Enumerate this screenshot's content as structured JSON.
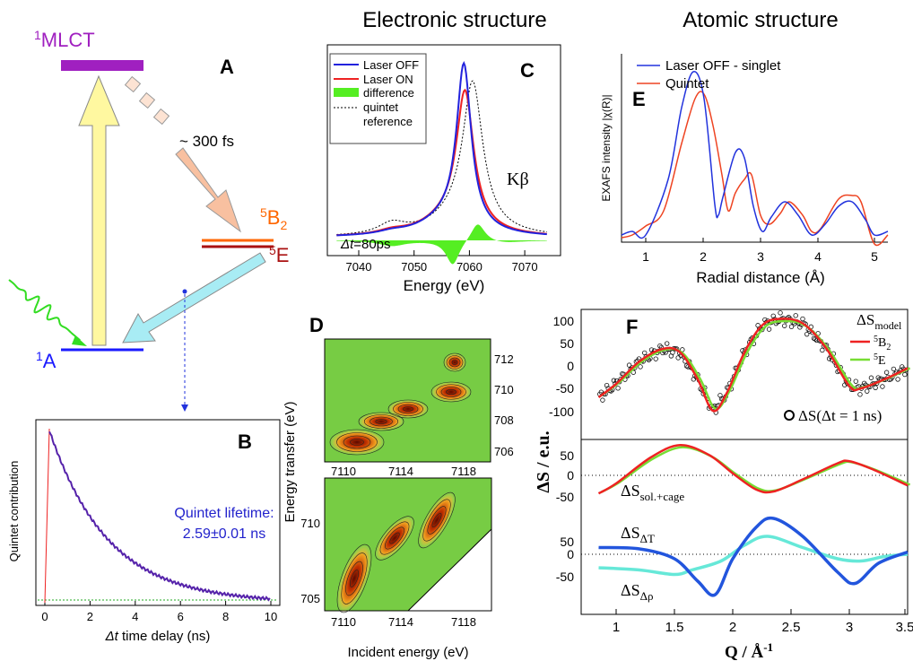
{
  "headers": {
    "electronic": "Electronic structure",
    "atomic": "Atomic structure"
  },
  "panel_a": {
    "label": "A",
    "mlct": {
      "sup": "1",
      "name": "MLCT"
    },
    "b2": {
      "sup": "5",
      "name": "B",
      "sub": "2"
    },
    "e": {
      "sup": "5",
      "name": "E"
    },
    "a": {
      "sup": "1",
      "name": "A"
    },
    "time": "~ 300 fs"
  },
  "panel_b": {
    "label": "B",
    "ylabel": "Quintet contribution",
    "xlabel_italic": "Δt",
    "xlabel": " time delay (ns)",
    "xticks": [
      "0",
      "2",
      "4",
      "6",
      "8",
      "10"
    ],
    "annotation": [
      "Quintet lifetime:",
      "2.59±0.01 ns"
    ]
  },
  "panel_c": {
    "label": "C",
    "legend": [
      "Laser OFF",
      "Laser ON",
      "difference",
      "quintet",
      "reference"
    ],
    "kbeta": "Kβ",
    "delay_italic": "Δt",
    "delay": "=80ps",
    "xticks": [
      "7040",
      "7050",
      "7060",
      "7070"
    ],
    "xlabel": "Energy (eV)"
  },
  "panel_d": {
    "label": "D",
    "top_yticks": [
      "712",
      "710",
      "708",
      "706"
    ],
    "top_xticks": [
      "7110",
      "7114",
      "7118"
    ],
    "ylabel": "Energy transfer (eV)",
    "bottom_yticks": [
      "710",
      "705"
    ],
    "bottom_xticks": [
      "7110",
      "7114",
      "7118"
    ],
    "xlabel": "Incident energy (eV)"
  },
  "panel_e": {
    "label": "E",
    "legend": [
      "Laser OFF - singlet",
      "Quintet"
    ],
    "ylabel": "EXAFS intensity |χ(R)|",
    "xticks": [
      "1",
      "2",
      "3",
      "4",
      "5"
    ],
    "xlabel": "Radial distance (Å)"
  },
  "panel_f": {
    "label": "F",
    "top_yticks": [
      "100",
      "50",
      "0",
      "-50",
      "-100"
    ],
    "middle_yticks": [
      "50",
      "0",
      "-50"
    ],
    "bottom_yticks": [
      "50",
      "0",
      "-50"
    ],
    "model": {
      "name": "ΔS",
      "sub": "model"
    },
    "b2": {
      "sup": "5",
      "name": "B",
      "sub": "2"
    },
    "e": {
      "sup": "5",
      "name": "E"
    },
    "data_label": "ΔS(Δt = 1 ns)",
    "sol_cage": {
      "name": "ΔS",
      "sub": "sol.+cage"
    },
    "dT": {
      "name": "ΔS",
      "sub": "ΔT"
    },
    "drho": {
      "name": "ΔS",
      "sub": "Δρ"
    },
    "ylabel": "ΔS / e.u.",
    "xlabel": {
      "name": "Q / Å",
      "sup": "-1"
    },
    "xticks": [
      "1",
      "1.5",
      "2",
      "2.5",
      "3",
      "3.5"
    ]
  }
}
